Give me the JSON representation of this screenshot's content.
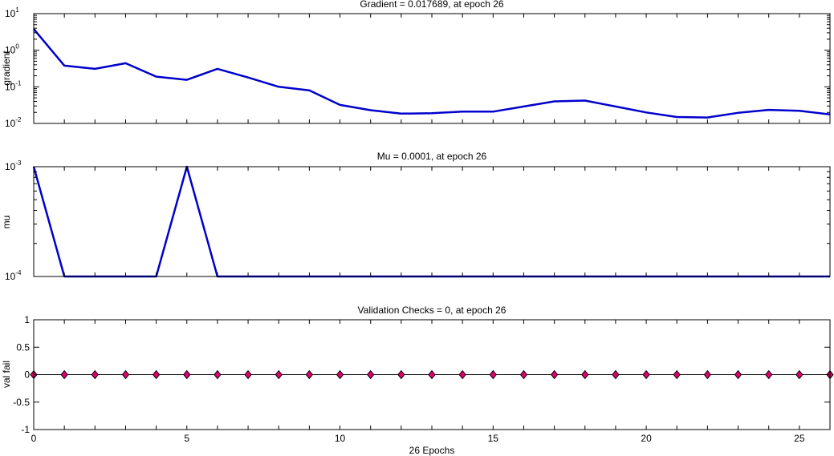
{
  "chart_data": [
    {
      "type": "line",
      "title": "Gradient = 0.017689, at epoch 26",
      "ylabel": "gradient",
      "xlabel": "",
      "yscale": "log",
      "xlim": [
        0,
        26
      ],
      "ylim": [
        0.01,
        10
      ],
      "y_ticks": [
        {
          "base": "10",
          "exp": "-2"
        },
        {
          "base": "10",
          "exp": "-1"
        },
        {
          "base": "10",
          "exp": "0"
        },
        {
          "base": "10",
          "exp": "1"
        }
      ],
      "x": [
        0,
        1,
        2,
        3,
        4,
        5,
        6,
        7,
        8,
        9,
        10,
        11,
        12,
        13,
        14,
        15,
        16,
        17,
        18,
        19,
        20,
        21,
        22,
        23,
        24,
        25,
        26
      ],
      "values": [
        3.8,
        0.38,
        0.31,
        0.44,
        0.19,
        0.155,
        0.31,
        0.18,
        0.1,
        0.08,
        0.032,
        0.023,
        0.0185,
        0.019,
        0.021,
        0.021,
        0.029,
        0.04,
        0.042,
        0.029,
        0.02,
        0.015,
        0.0145,
        0.0195,
        0.0235,
        0.0222,
        0.017689
      ],
      "color": "#0000cc",
      "grid": false
    },
    {
      "type": "line",
      "title": "Mu = 0.0001, at epoch 26",
      "ylabel": "mu",
      "xlabel": "",
      "yscale": "log",
      "xlim": [
        0,
        26
      ],
      "ylim": [
        0.0001,
        0.001
      ],
      "y_ticks": [
        {
          "base": "10",
          "exp": "-4"
        },
        {
          "base": "10",
          "exp": "-3"
        }
      ],
      "x": [
        0,
        1,
        2,
        3,
        4,
        5,
        6,
        7,
        8,
        9,
        10,
        11,
        12,
        13,
        14,
        15,
        16,
        17,
        18,
        19,
        20,
        21,
        22,
        23,
        24,
        25,
        26
      ],
      "values": [
        0.001,
        0.0001,
        0.0001,
        0.0001,
        0.0001,
        0.001,
        0.0001,
        0.0001,
        0.0001,
        0.0001,
        0.0001,
        0.0001,
        0.0001,
        0.0001,
        0.0001,
        0.0001,
        0.0001,
        0.0001,
        0.0001,
        0.0001,
        0.0001,
        0.0001,
        0.0001,
        0.0001,
        0.0001,
        0.0001,
        0.0001
      ],
      "color": "#0000cc",
      "grid": false
    },
    {
      "type": "scatter",
      "title": "Validation Checks = 0, at epoch 26",
      "ylabel": "val fail",
      "xlabel": "26 Epochs",
      "yscale": "linear",
      "xlim": [
        0,
        26
      ],
      "ylim": [
        -1,
        1
      ],
      "y_ticks": [
        "-1",
        "-0.5",
        "0",
        "0.5",
        "1"
      ],
      "x_ticks": [
        "0",
        "5",
        "10",
        "15",
        "20",
        "25"
      ],
      "x": [
        0,
        1,
        2,
        3,
        4,
        5,
        6,
        7,
        8,
        9,
        10,
        11,
        12,
        13,
        14,
        15,
        16,
        17,
        18,
        19,
        20,
        21,
        22,
        23,
        24,
        25,
        26
      ],
      "values": [
        0,
        0,
        0,
        0,
        0,
        0,
        0,
        0,
        0,
        0,
        0,
        0,
        0,
        0,
        0,
        0,
        0,
        0,
        0,
        0,
        0,
        0,
        0,
        0,
        0,
        0,
        0
      ],
      "marker": "diamond",
      "marker_color": "#e0006e",
      "grid": false
    }
  ]
}
